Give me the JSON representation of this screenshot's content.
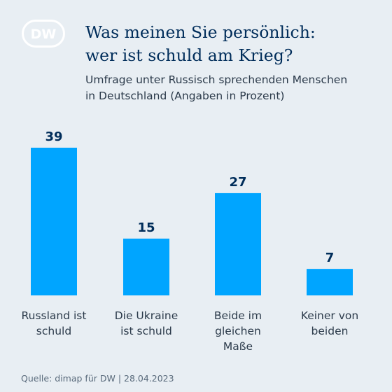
{
  "logo": {
    "text": "DW",
    "icon": "dw-logo"
  },
  "title_lines": [
    "Was meinen Sie persönlich:",
    "wer ist schuld am Krieg?"
  ],
  "subtitle_lines": [
    "Umfrage unter Russisch sprechenden Menschen",
    "in Deutschland (Angaben in Prozent)"
  ],
  "source": "Quelle: dimap für DW | 28.04.2023",
  "colors": {
    "bar": "#00a5ff",
    "value_label": "#002d5a",
    "background": "#e8eef3"
  },
  "chart_data": {
    "type": "bar",
    "categories": [
      [
        "Russland ist",
        "schuld"
      ],
      [
        "Die Ukraine",
        "ist schuld"
      ],
      [
        "Beide im",
        "gleichen",
        "Maße"
      ],
      [
        "Keiner von",
        "beiden"
      ]
    ],
    "values": [
      39,
      15,
      27,
      7
    ],
    "unit": "%",
    "grid": false,
    "axis_visible": false
  }
}
